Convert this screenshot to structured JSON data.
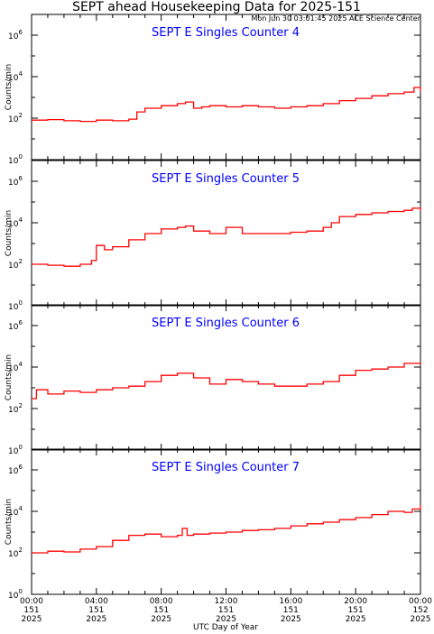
{
  "header": {
    "title": "SEPT ahead Housekeeping Data for 2025-151",
    "timestamp": "Mon Jun 30 03:01:45 2025 ACE Science Center"
  },
  "xlabel": "UTC Day of Year",
  "colors": {
    "trace": "#ff0000",
    "panel_title": "#0000ff",
    "axis": "#000000"
  },
  "chart_data": [
    {
      "type": "line",
      "title": "SEPT E Singles Counter 4",
      "ylabel": "Counts/min",
      "yscale": "log",
      "ylim": [
        1,
        10000000
      ],
      "yticks": [
        {
          "value": 1,
          "base": "10",
          "exp": "0"
        },
        {
          "value": 100,
          "base": "10",
          "exp": "2"
        },
        {
          "value": 10000,
          "base": "10",
          "exp": "4"
        },
        {
          "value": 1000000,
          "base": "10",
          "exp": "6"
        }
      ],
      "xlim": [
        0,
        24
      ],
      "xticks": [
        {
          "hours": 0,
          "time": "00:00",
          "doy": "151",
          "year": "2025"
        },
        {
          "hours": 4,
          "time": "04:00",
          "doy": "151",
          "year": "2025"
        },
        {
          "hours": 8,
          "time": "08:00",
          "doy": "151",
          "year": "2025"
        },
        {
          "hours": 12,
          "time": "12:00",
          "doy": "151",
          "year": "2025"
        },
        {
          "hours": 16,
          "time": "16:00",
          "doy": "151",
          "year": "2025"
        },
        {
          "hours": 20,
          "time": "20:00",
          "doy": "151",
          "year": "2025"
        },
        {
          "hours": 24,
          "time": "00:00",
          "doy": "152",
          "year": "2025"
        }
      ],
      "series": [
        {
          "x_hours": [
            0,
            1,
            2,
            3,
            4,
            5,
            6,
            6.5,
            7,
            8,
            9,
            9.5,
            10,
            10.5,
            11,
            12,
            13,
            14,
            15,
            16,
            17,
            18,
            19,
            20,
            21,
            22,
            23,
            23.6,
            24
          ],
          "counts": [
            80,
            85,
            75,
            70,
            80,
            75,
            90,
            200,
            300,
            400,
            500,
            600,
            300,
            350,
            400,
            350,
            400,
            350,
            300,
            350,
            400,
            500,
            700,
            900,
            1200,
            1500,
            1800,
            3000,
            2000
          ]
        }
      ]
    },
    {
      "type": "line",
      "title": "SEPT E Singles Counter 5",
      "ylabel": "Counts/min",
      "yscale": "log",
      "ylim": [
        1,
        10000000
      ],
      "yticks": [
        {
          "value": 1,
          "base": "10",
          "exp": "0"
        },
        {
          "value": 100,
          "base": "10",
          "exp": "2"
        },
        {
          "value": 10000,
          "base": "10",
          "exp": "4"
        },
        {
          "value": 1000000,
          "base": "10",
          "exp": "6"
        }
      ],
      "xlim": [
        0,
        24
      ],
      "xticks": [
        {
          "hours": 0,
          "time": "00:00",
          "doy": "151",
          "year": "2025"
        },
        {
          "hours": 4,
          "time": "04:00",
          "doy": "151",
          "year": "2025"
        },
        {
          "hours": 8,
          "time": "08:00",
          "doy": "151",
          "year": "2025"
        },
        {
          "hours": 12,
          "time": "12:00",
          "doy": "151",
          "year": "2025"
        },
        {
          "hours": 16,
          "time": "16:00",
          "doy": "151",
          "year": "2025"
        },
        {
          "hours": 20,
          "time": "20:00",
          "doy": "151",
          "year": "2025"
        },
        {
          "hours": 24,
          "time": "00:00",
          "doy": "152",
          "year": "2025"
        }
      ],
      "series": [
        {
          "x_hours": [
            0,
            1,
            2,
            3,
            3.7,
            4,
            4.5,
            5,
            6,
            7,
            8,
            9,
            9.5,
            10,
            11,
            12,
            13,
            14,
            15,
            16,
            17,
            18,
            18.5,
            19,
            20,
            21,
            22,
            23,
            23.5,
            24
          ],
          "counts": [
            100,
            90,
            80,
            100,
            150,
            800,
            500,
            700,
            1500,
            3000,
            5000,
            6000,
            7000,
            4000,
            3000,
            6000,
            3000,
            3000,
            3000,
            3500,
            4000,
            6000,
            10000,
            20000,
            25000,
            30000,
            35000,
            40000,
            50000,
            40000
          ]
        }
      ]
    },
    {
      "type": "line",
      "title": "SEPT E Singles Counter 6",
      "ylabel": "Counts/min",
      "yscale": "log",
      "ylim": [
        1,
        10000000
      ],
      "yticks": [
        {
          "value": 1,
          "base": "10",
          "exp": "0"
        },
        {
          "value": 100,
          "base": "10",
          "exp": "2"
        },
        {
          "value": 10000,
          "base": "10",
          "exp": "4"
        },
        {
          "value": 1000000,
          "base": "10",
          "exp": "6"
        }
      ],
      "xlim": [
        0,
        24
      ],
      "xticks": [
        {
          "hours": 0,
          "time": "00:00",
          "doy": "151",
          "year": "2025"
        },
        {
          "hours": 4,
          "time": "04:00",
          "doy": "151",
          "year": "2025"
        },
        {
          "hours": 8,
          "time": "08:00",
          "doy": "151",
          "year": "2025"
        },
        {
          "hours": 12,
          "time": "12:00",
          "doy": "151",
          "year": "2025"
        },
        {
          "hours": 16,
          "time": "16:00",
          "doy": "151",
          "year": "2025"
        },
        {
          "hours": 20,
          "time": "20:00",
          "doy": "151",
          "year": "2025"
        },
        {
          "hours": 24,
          "time": "00:00",
          "doy": "152",
          "year": "2025"
        }
      ],
      "series": [
        {
          "x_hours": [
            0,
            0.3,
            1,
            2,
            3,
            4,
            5,
            6,
            7,
            8,
            9,
            10,
            11,
            12,
            13,
            14,
            15,
            16,
            17,
            18,
            19,
            20,
            21,
            22,
            23,
            24
          ],
          "counts": [
            300,
            800,
            500,
            700,
            600,
            800,
            1000,
            1200,
            2000,
            4000,
            5000,
            3000,
            1500,
            2500,
            2000,
            1500,
            1200,
            1200,
            1500,
            2000,
            4000,
            7000,
            8000,
            10000,
            15000,
            13000
          ]
        }
      ]
    },
    {
      "type": "line",
      "title": "SEPT E Singles Counter 7",
      "ylabel": "Counts/min",
      "yscale": "log",
      "ylim": [
        1,
        10000000
      ],
      "yticks": [
        {
          "value": 1,
          "base": "10",
          "exp": "0"
        },
        {
          "value": 100,
          "base": "10",
          "exp": "2"
        },
        {
          "value": 10000,
          "base": "10",
          "exp": "4"
        },
        {
          "value": 1000000,
          "base": "10",
          "exp": "6"
        }
      ],
      "xlim": [
        0,
        24
      ],
      "xticks": [
        {
          "hours": 0,
          "time": "00:00",
          "doy": "151",
          "year": "2025"
        },
        {
          "hours": 4,
          "time": "04:00",
          "doy": "151",
          "year": "2025"
        },
        {
          "hours": 8,
          "time": "08:00",
          "doy": "151",
          "year": "2025"
        },
        {
          "hours": 12,
          "time": "12:00",
          "doy": "151",
          "year": "2025"
        },
        {
          "hours": 16,
          "time": "16:00",
          "doy": "151",
          "year": "2025"
        },
        {
          "hours": 20,
          "time": "20:00",
          "doy": "151",
          "year": "2025"
        },
        {
          "hours": 24,
          "time": "00:00",
          "doy": "152",
          "year": "2025"
        }
      ],
      "series": [
        {
          "x_hours": [
            0,
            1,
            2,
            3,
            4,
            5,
            6,
            7,
            8,
            9,
            9.3,
            9.6,
            10,
            11,
            12,
            13,
            14,
            15,
            16,
            17,
            18,
            19,
            20,
            21,
            22,
            23,
            23.5,
            24
          ],
          "counts": [
            100,
            120,
            110,
            150,
            200,
            400,
            700,
            800,
            600,
            700,
            1500,
            700,
            800,
            900,
            1000,
            1200,
            1300,
            1500,
            2000,
            2500,
            3000,
            4000,
            5000,
            7000,
            10000,
            9000,
            13000,
            20000
          ]
        }
      ]
    }
  ]
}
